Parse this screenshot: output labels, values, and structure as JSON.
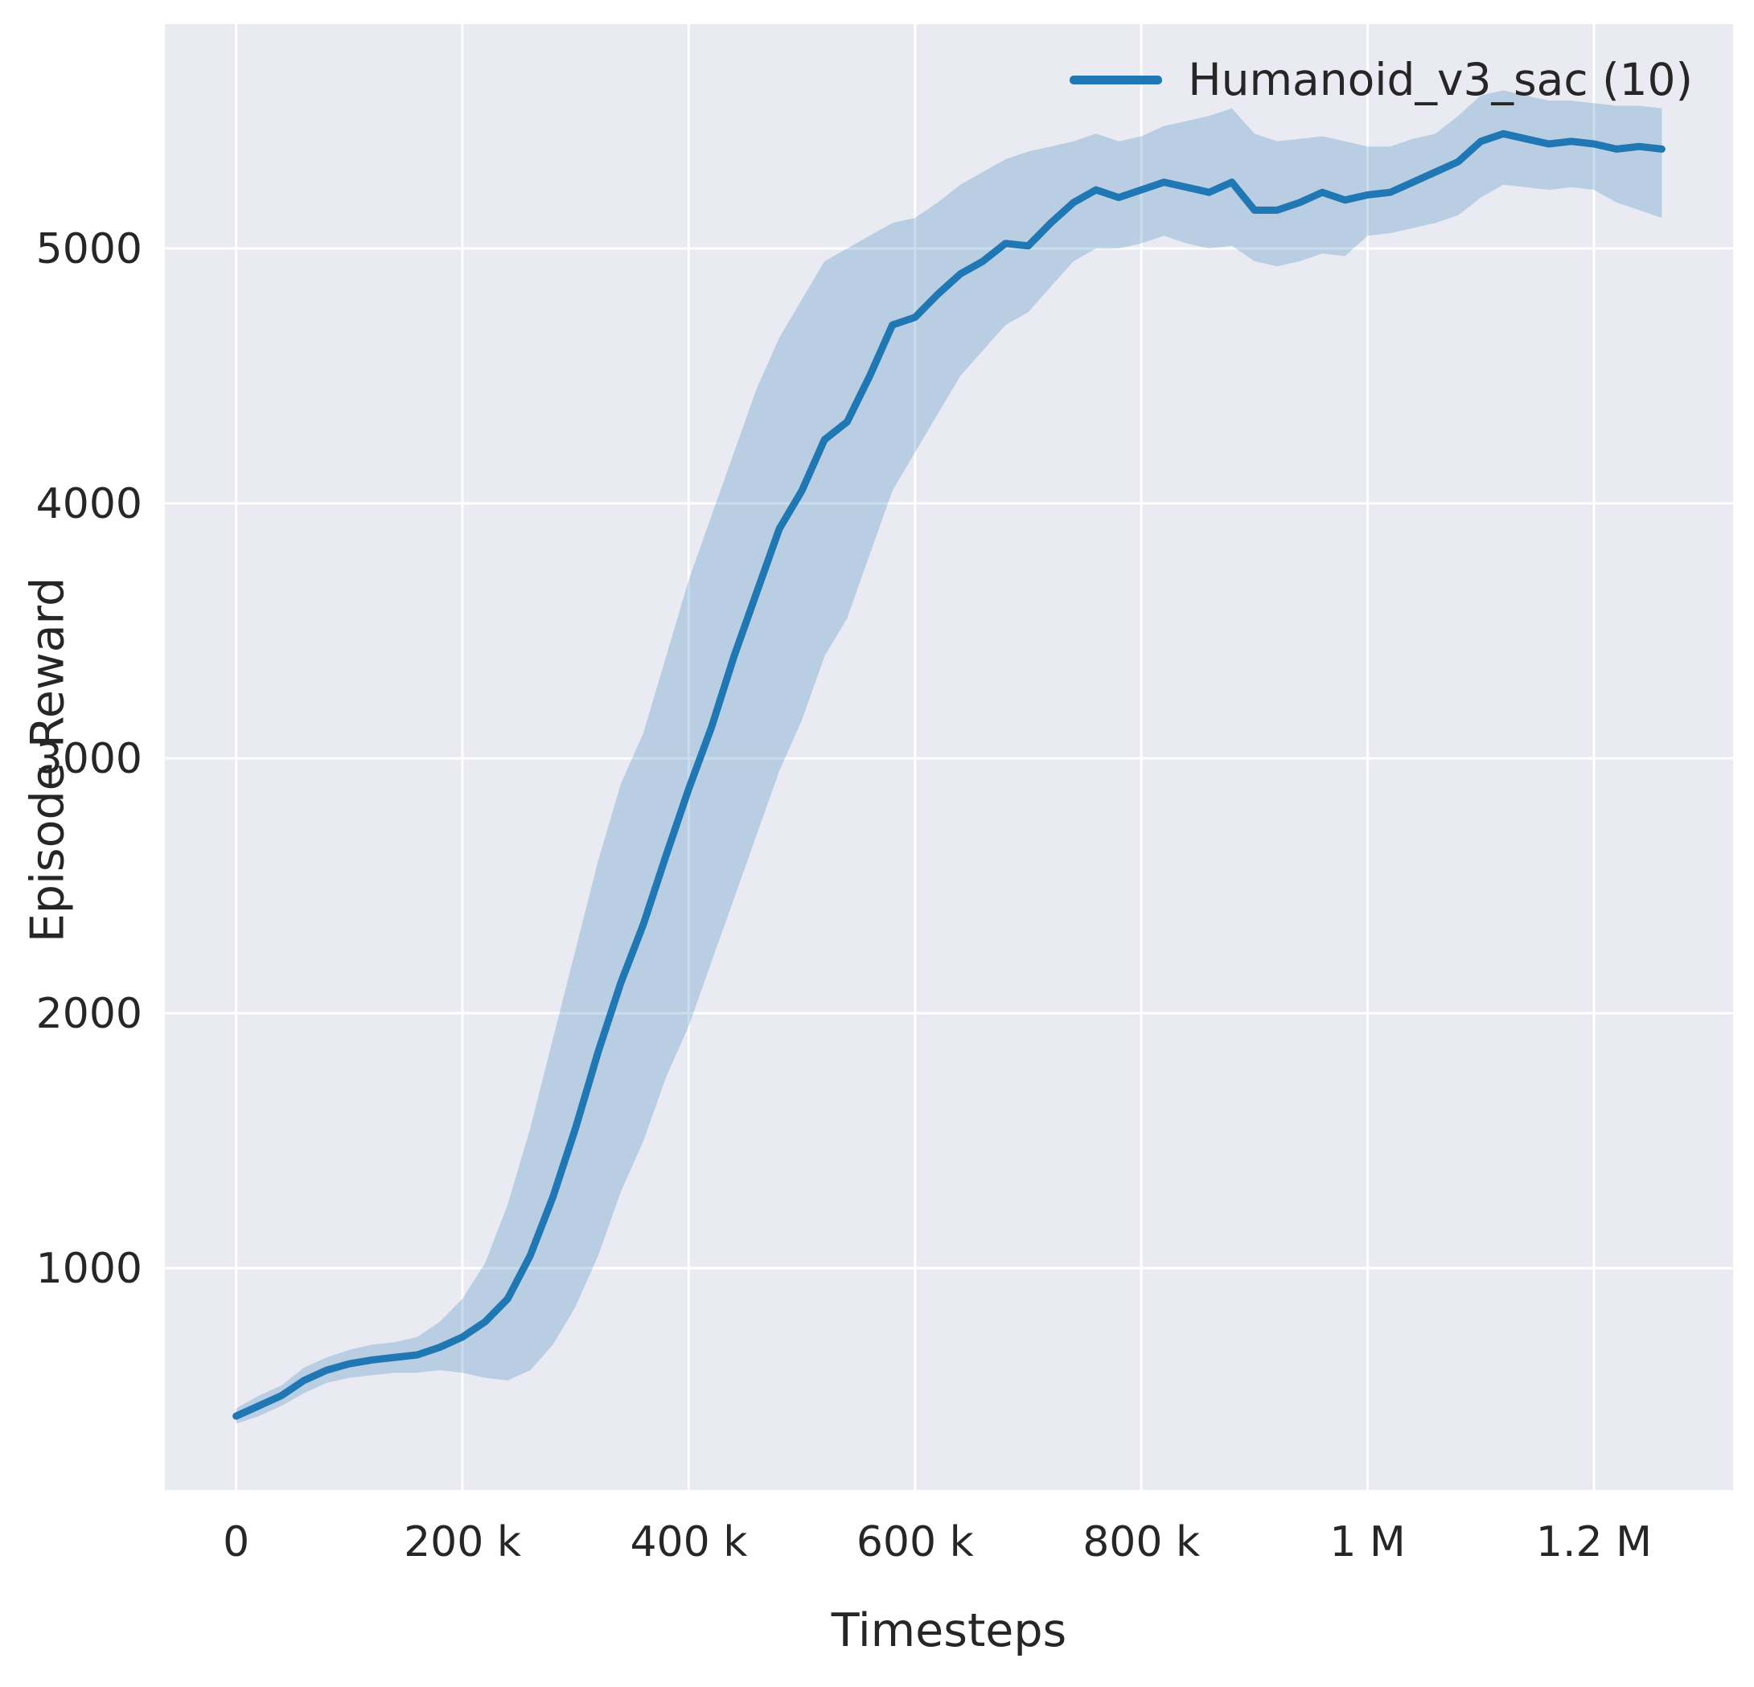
{
  "chart_data": {
    "type": "line",
    "title": "",
    "xlabel": "Timesteps",
    "ylabel": "Episode Reward",
    "legend_position": "upper right",
    "grid": true,
    "xlim": [
      -63000,
      1323000
    ],
    "ylim": [
      130,
      5880
    ],
    "xticks": [
      {
        "value": 0,
        "label": "0"
      },
      {
        "value": 200000,
        "label": "200 k"
      },
      {
        "value": 400000,
        "label": "400 k"
      },
      {
        "value": 600000,
        "label": "600 k"
      },
      {
        "value": 800000,
        "label": "800 k"
      },
      {
        "value": 1000000,
        "label": "1 M"
      },
      {
        "value": 1200000,
        "label": "1.2 M"
      }
    ],
    "yticks": [
      {
        "value": 1000,
        "label": "1000"
      },
      {
        "value": 2000,
        "label": "2000"
      },
      {
        "value": 3000,
        "label": "3000"
      },
      {
        "value": 4000,
        "label": "4000"
      },
      {
        "value": 5000,
        "label": "5000"
      }
    ],
    "colors": {
      "line": "#1f77b4",
      "band": "#1f77b4",
      "band_opacity": 0.24,
      "background": "#eaeaf2",
      "grid": "#ffffff",
      "text": "#262626"
    },
    "series": [
      {
        "name": "Humanoid_v3_sac (10)",
        "x": [
          0,
          20000,
          40000,
          60000,
          80000,
          100000,
          120000,
          140000,
          160000,
          180000,
          200000,
          220000,
          240000,
          260000,
          280000,
          300000,
          320000,
          340000,
          360000,
          380000,
          400000,
          420000,
          440000,
          460000,
          480000,
          500000,
          520000,
          540000,
          560000,
          580000,
          600000,
          620000,
          640000,
          660000,
          680000,
          700000,
          720000,
          740000,
          760000,
          780000,
          800000,
          820000,
          840000,
          860000,
          880000,
          900000,
          920000,
          940000,
          960000,
          980000,
          1000000,
          1020000,
          1040000,
          1060000,
          1080000,
          1100000,
          1120000,
          1140000,
          1160000,
          1180000,
          1200000,
          1220000,
          1240000,
          1260000
        ],
        "mean": [
          420,
          460,
          500,
          560,
          600,
          625,
          640,
          650,
          660,
          690,
          730,
          790,
          880,
          1050,
          1280,
          1550,
          1850,
          2120,
          2350,
          2620,
          2880,
          3120,
          3400,
          3650,
          3900,
          4050,
          4250,
          4320,
          4500,
          4700,
          4730,
          4820,
          4900,
          4950,
          5020,
          5010,
          5100,
          5180,
          5230,
          5200,
          5230,
          5260,
          5240,
          5220,
          5260,
          5150,
          5150,
          5180,
          5220,
          5190,
          5210,
          5220,
          5260,
          5300,
          5340,
          5420,
          5450,
          5430,
          5410,
          5420,
          5410,
          5390,
          5400,
          5390
        ],
        "lower": [
          390,
          420,
          460,
          510,
          550,
          570,
          580,
          590,
          590,
          600,
          590,
          570,
          560,
          600,
          700,
          850,
          1050,
          1300,
          1500,
          1750,
          1950,
          2200,
          2450,
          2700,
          2950,
          3150,
          3400,
          3550,
          3800,
          4050,
          4200,
          4350,
          4500,
          4600,
          4700,
          4750,
          4850,
          4950,
          5000,
          5000,
          5020,
          5050,
          5020,
          5000,
          5010,
          4950,
          4930,
          4950,
          4980,
          4970,
          5050,
          5060,
          5080,
          5100,
          5130,
          5200,
          5250,
          5240,
          5230,
          5240,
          5230,
          5180,
          5150,
          5120
        ],
        "upper": [
          450,
          500,
          540,
          610,
          650,
          680,
          700,
          710,
          730,
          790,
          880,
          1020,
          1250,
          1550,
          1900,
          2250,
          2600,
          2900,
          3100,
          3400,
          3700,
          3950,
          4200,
          4450,
          4650,
          4800,
          4950,
          5000,
          5050,
          5100,
          5120,
          5180,
          5250,
          5300,
          5350,
          5380,
          5400,
          5420,
          5450,
          5420,
          5440,
          5480,
          5500,
          5520,
          5550,
          5450,
          5420,
          5430,
          5440,
          5420,
          5400,
          5400,
          5430,
          5450,
          5520,
          5600,
          5620,
          5600,
          5580,
          5580,
          5570,
          5560,
          5560,
          5550
        ]
      }
    ]
  }
}
